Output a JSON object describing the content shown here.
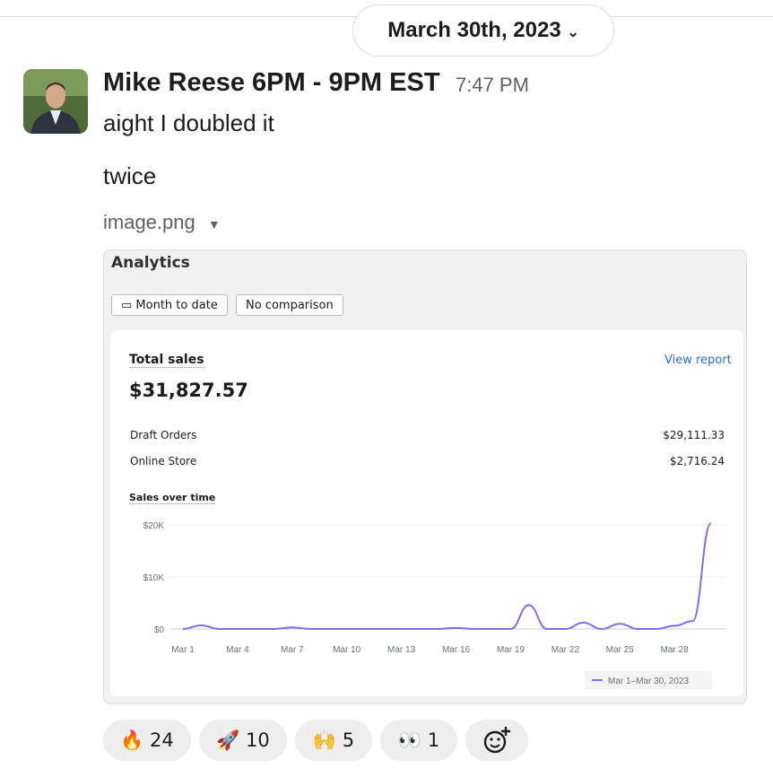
{
  "date_divider": "March 30th, 2023",
  "message": {
    "author": "Mike Reese 6PM - 9PM EST",
    "time": "7:47 PM",
    "lines": [
      "aight I doubled it",
      "twice"
    ]
  },
  "attachment": {
    "filename": "image.png"
  },
  "analytics": {
    "title": "Analytics",
    "buttons": [
      "Month to date",
      "No comparison"
    ],
    "card_title": "Total sales",
    "link": "View report",
    "total": "$31,827.57",
    "rows": [
      [
        "Draft Orders",
        "$29,111.33"
      ],
      [
        "Online Store",
        "$2,716.24"
      ]
    ]
  },
  "chart_data": {
    "type": "line",
    "title": "Sales over time",
    "categories": [
      "Mar 1",
      null,
      null,
      "Mar 4",
      null,
      null,
      "Mar 7",
      null,
      null,
      "Mar 10",
      null,
      null,
      "Mar 13",
      null,
      null,
      "Mar 16",
      null,
      null,
      "Mar 19",
      null,
      null,
      "Mar 22",
      null,
      null,
      "Mar 25",
      null,
      null,
      "Mar 28",
      null,
      null
    ],
    "series": [
      {
        "name": "Mar 1–Mar 30, 2023",
        "color": "#7a6ff0",
        "values": [
          0,
          700,
          0,
          0,
          0,
          0,
          300,
          0,
          0,
          0,
          0,
          0,
          0,
          0,
          0,
          200,
          0,
          0,
          0,
          4600,
          0,
          0,
          1200,
          0,
          1000,
          0,
          0,
          600,
          1500,
          20300
        ]
      }
    ],
    "ylim": [
      0,
      21000
    ],
    "yticks": [
      {
        "value": 0,
        "label": "$0"
      },
      {
        "value": 10000,
        "label": "$10K"
      },
      {
        "value": 20000,
        "label": "$20K"
      }
    ],
    "grid": true
  },
  "reactions": [
    {
      "emoji": "🔥",
      "count": 24
    },
    {
      "emoji": "🚀",
      "count": 10
    },
    {
      "emoji": "🙌",
      "count": 5
    },
    {
      "emoji": "👀",
      "count": 1
    }
  ]
}
